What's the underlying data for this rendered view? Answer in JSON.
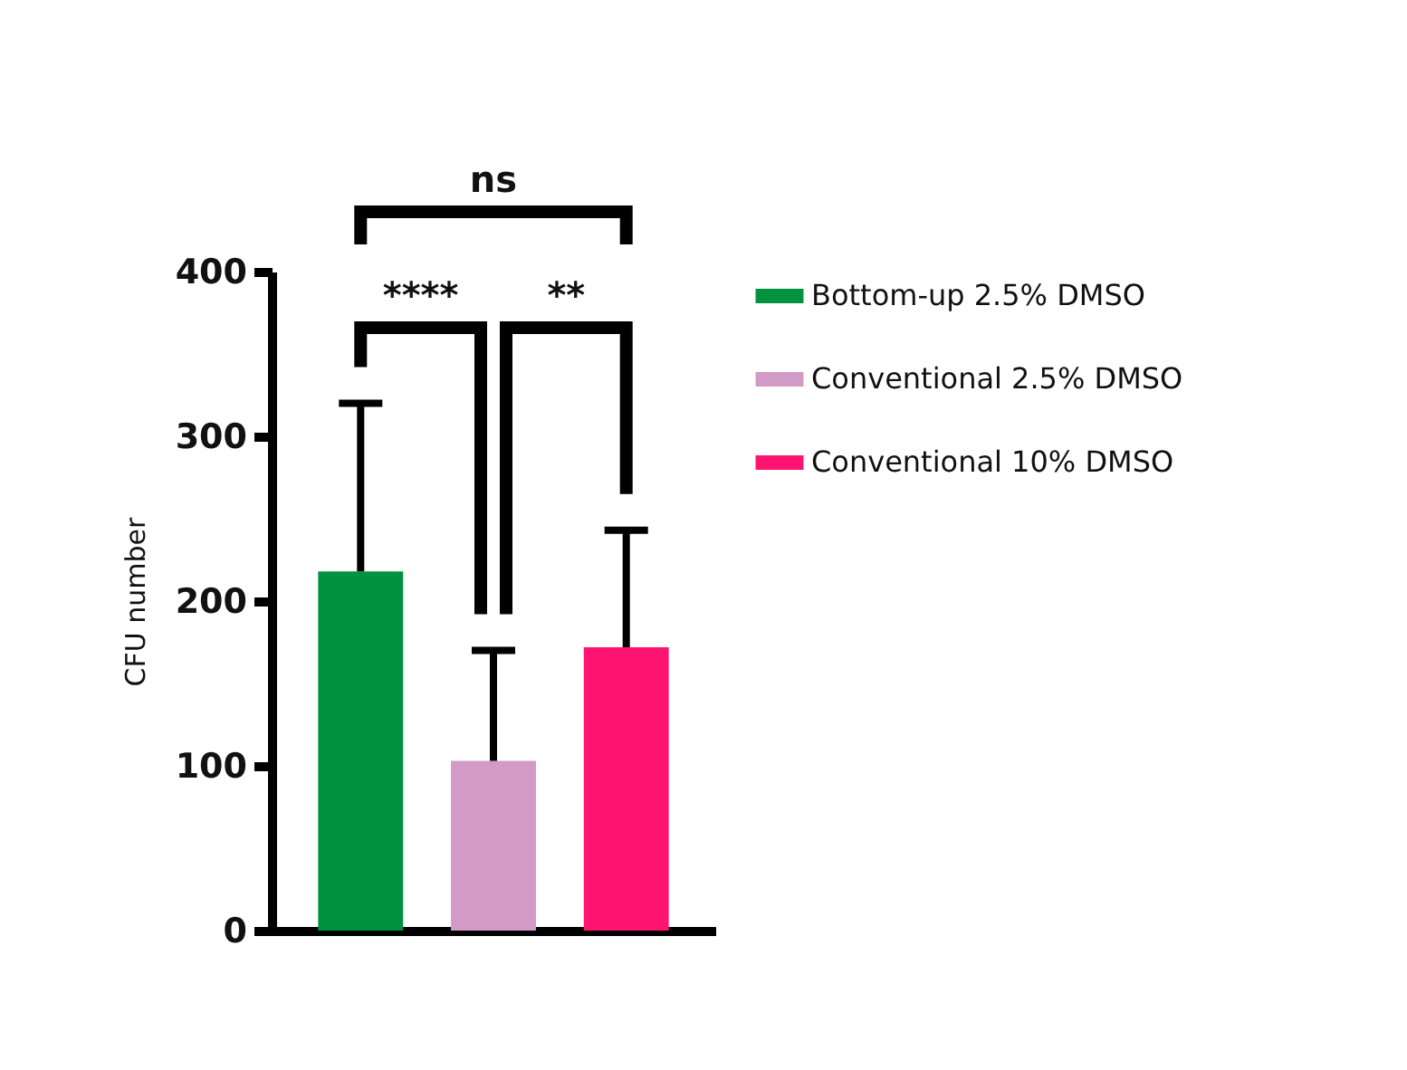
{
  "chart_data": {
    "type": "bar",
    "ylabel": "CFU number",
    "categories": [
      null,
      null,
      null
    ],
    "series": [
      {
        "name": "Bottom-up 2.5% DMSO",
        "color": "#00923f",
        "values": [
          218,
          null,
          null
        ],
        "errors": [
          [
            218,
            320
          ],
          null,
          null
        ]
      },
      {
        "name": "Conventional 2.5% DMSO",
        "color": "#d29ac6",
        "values": [
          null,
          103,
          null
        ],
        "errors": [
          null,
          [
            103,
            170
          ],
          null
        ]
      },
      {
        "name": "Conventional 10% DMSO",
        "color": "#ff1472",
        "values": [
          null,
          null,
          172
        ],
        "errors": [
          null,
          null,
          [
            172,
            243
          ]
        ]
      }
    ],
    "ylim": [
      0,
      400
    ],
    "yticks": [
      0,
      100,
      200,
      300,
      400
    ],
    "grid": false,
    "legend": "right",
    "annotations": [
      "ns",
      "****",
      "**"
    ]
  }
}
